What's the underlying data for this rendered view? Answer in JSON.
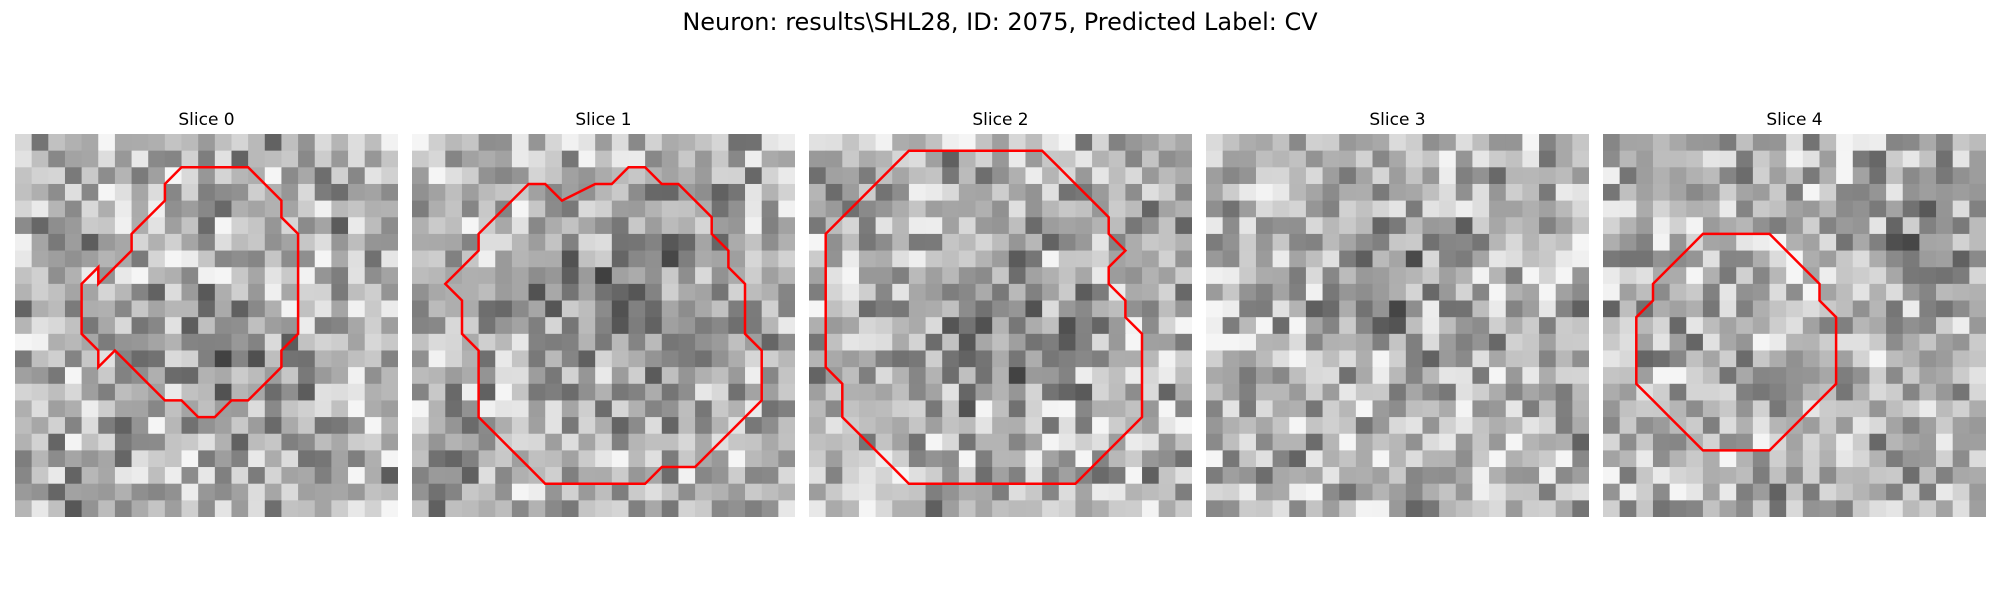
{
  "figure": {
    "title": "Neuron: results\\SHL28, ID: 2075, Predicted Label: CV"
  },
  "panels": [
    {
      "title": "Slice 0",
      "seed": 11,
      "dark": [
        [
          0.5,
          0.55,
          0.25,
          0.6
        ],
        [
          0.1,
          0.9,
          0.2,
          0.4
        ]
      ]
    },
    {
      "title": "Slice 1",
      "seed": 23,
      "dark": [
        [
          0.55,
          0.45,
          0.35,
          0.7
        ],
        [
          0.1,
          0.85,
          0.2,
          0.5
        ]
      ]
    },
    {
      "title": "Slice 2",
      "seed": 37,
      "dark": [
        [
          0.5,
          0.5,
          0.35,
          0.5
        ],
        [
          0.95,
          0.1,
          0.15,
          0.4
        ]
      ]
    },
    {
      "title": "Slice 3",
      "seed": 41,
      "dark": [
        [
          0.45,
          0.3,
          0.3,
          0.55
        ],
        [
          0.95,
          0.75,
          0.15,
          0.4
        ]
      ]
    },
    {
      "title": "Slice 4",
      "seed": 53,
      "dark": [
        [
          0.85,
          0.2,
          0.25,
          0.6
        ],
        [
          0.5,
          0.6,
          0.2,
          0.3
        ]
      ]
    }
  ],
  "colors": {
    "contour": "#ff0000"
  },
  "contours": [
    [
      [
        10,
        2
      ],
      [
        14,
        2
      ],
      [
        15,
        3
      ],
      [
        16,
        4
      ],
      [
        16,
        5
      ],
      [
        17,
        6
      ],
      [
        17,
        9
      ],
      [
        17,
        12
      ],
      [
        16,
        13
      ],
      [
        16,
        14
      ],
      [
        15,
        15
      ],
      [
        14,
        16
      ],
      [
        13,
        16
      ],
      [
        12,
        17
      ],
      [
        11,
        17
      ],
      [
        10,
        16
      ],
      [
        9,
        16
      ],
      [
        8,
        15
      ],
      [
        7,
        14
      ],
      [
        6,
        13
      ],
      [
        5,
        14
      ],
      [
        5,
        13
      ],
      [
        4,
        12
      ],
      [
        4,
        9
      ],
      [
        5,
        8
      ],
      [
        5,
        9
      ],
      [
        6,
        8
      ],
      [
        7,
        7
      ],
      [
        7,
        6
      ],
      [
        8,
        5
      ],
      [
        9,
        4
      ],
      [
        9,
        3
      ]
    ],
    [
      [
        9,
        4
      ],
      [
        11,
        3
      ],
      [
        12,
        3
      ],
      [
        13,
        2
      ],
      [
        14,
        2
      ],
      [
        15,
        3
      ],
      [
        16,
        3
      ],
      [
        17,
        4
      ],
      [
        18,
        5
      ],
      [
        18,
        6
      ],
      [
        19,
        7
      ],
      [
        19,
        8
      ],
      [
        20,
        9
      ],
      [
        20,
        12
      ],
      [
        21,
        13
      ],
      [
        21,
        16
      ],
      [
        20,
        17
      ],
      [
        19,
        18
      ],
      [
        18,
        19
      ],
      [
        17,
        20
      ],
      [
        15,
        20
      ],
      [
        14,
        21
      ],
      [
        8,
        21
      ],
      [
        7,
        20
      ],
      [
        6,
        19
      ],
      [
        5,
        18
      ],
      [
        4,
        17
      ],
      [
        4,
        15
      ],
      [
        4,
        13
      ],
      [
        3,
        12
      ],
      [
        3,
        10
      ],
      [
        2,
        9
      ],
      [
        3,
        8
      ],
      [
        4,
        7
      ],
      [
        4,
        6
      ],
      [
        5,
        5
      ],
      [
        6,
        4
      ],
      [
        7,
        3
      ],
      [
        8,
        3
      ]
    ],
    [
      [
        6,
        1
      ],
      [
        14,
        1
      ],
      [
        15,
        2
      ],
      [
        16,
        3
      ],
      [
        17,
        4
      ],
      [
        18,
        5
      ],
      [
        18,
        6
      ],
      [
        19,
        7
      ],
      [
        18,
        8
      ],
      [
        18,
        9
      ],
      [
        19,
        10
      ],
      [
        19,
        11
      ],
      [
        20,
        12
      ],
      [
        20,
        17
      ],
      [
        19,
        18
      ],
      [
        18,
        19
      ],
      [
        17,
        20
      ],
      [
        16,
        21
      ],
      [
        12,
        21
      ],
      [
        8,
        21
      ],
      [
        6,
        21
      ],
      [
        5,
        20
      ],
      [
        4,
        19
      ],
      [
        3,
        18
      ],
      [
        2,
        17
      ],
      [
        2,
        15
      ],
      [
        1,
        14
      ],
      [
        1,
        13
      ],
      [
        1,
        9
      ],
      [
        1,
        6
      ],
      [
        2,
        5
      ],
      [
        3,
        4
      ],
      [
        4,
        3
      ],
      [
        5,
        2
      ]
    ],
    [],
    [
      [
        6,
        6
      ],
      [
        10,
        6
      ],
      [
        11,
        7
      ],
      [
        12,
        8
      ],
      [
        13,
        9
      ],
      [
        13,
        10
      ],
      [
        14,
        11
      ],
      [
        14,
        15
      ],
      [
        13,
        16
      ],
      [
        12,
        17
      ],
      [
        11,
        18
      ],
      [
        10,
        19
      ],
      [
        6,
        19
      ],
      [
        5,
        18
      ],
      [
        4,
        17
      ],
      [
        3,
        16
      ],
      [
        2,
        15
      ],
      [
        2,
        11
      ],
      [
        3,
        10
      ],
      [
        3,
        9
      ],
      [
        4,
        8
      ],
      [
        5,
        7
      ]
    ]
  ]
}
